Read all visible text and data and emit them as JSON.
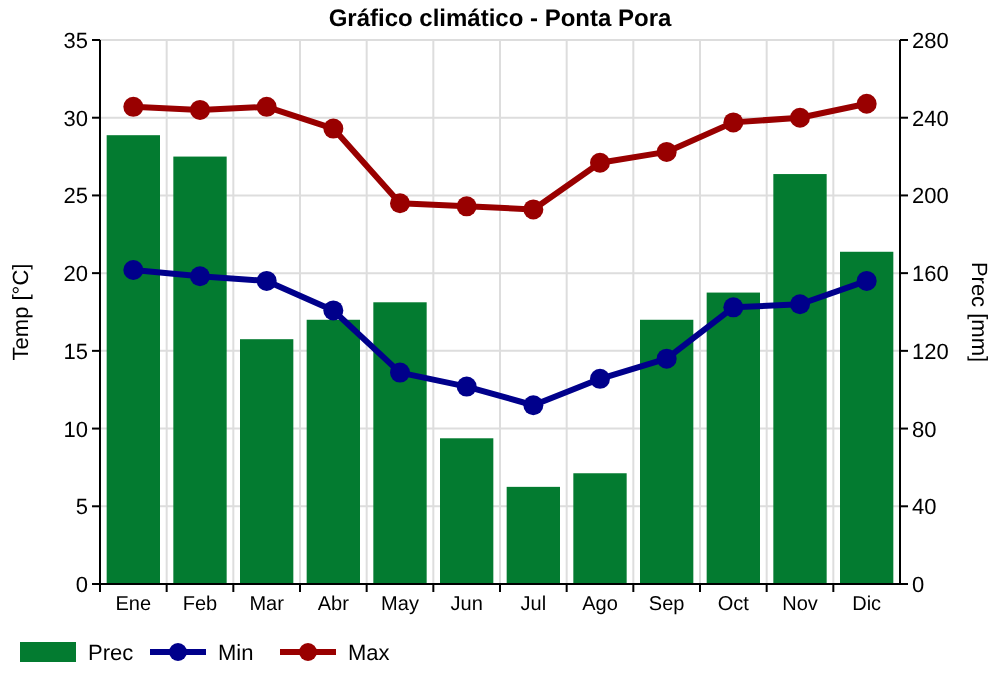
{
  "chart_data": {
    "type": "bar",
    "title": "Gráfico climático - Ponta Pora",
    "categories": [
      "Ene",
      "Feb",
      "Mar",
      "Abr",
      "May",
      "Jun",
      "Jul",
      "Ago",
      "Sep",
      "Oct",
      "Nov",
      "Dic"
    ],
    "series": [
      {
        "name": "Prec",
        "axis": "y2",
        "color": "#037b30",
        "values": [
          231,
          220,
          126,
          136,
          145,
          75,
          50,
          57,
          136,
          150,
          211,
          171
        ]
      },
      {
        "name": "Min",
        "type": "line",
        "color": "#00008b",
        "values": [
          20.2,
          19.8,
          19.5,
          17.6,
          13.6,
          12.7,
          11.5,
          13.2,
          14.5,
          17.8,
          18,
          19.5
        ]
      },
      {
        "name": "Max",
        "type": "line",
        "color": "#990000",
        "values": [
          30.7,
          30.5,
          30.7,
          29.3,
          24.5,
          24.3,
          24.1,
          27.1,
          27.8,
          29.7,
          30,
          30.9
        ]
      }
    ],
    "ylabel": "Temp [°C]",
    "y2label": "Prec [mm]",
    "ylim": [
      0,
      35
    ],
    "yticks": [
      0,
      5,
      10,
      15,
      20,
      25,
      30,
      35
    ],
    "y2lim": [
      0,
      280
    ],
    "y2ticks": [
      0,
      40,
      80,
      120,
      160,
      200,
      240,
      280
    ],
    "grid": true,
    "legend": "bottom left",
    "marker": "circle",
    "line_style": "solid"
  }
}
